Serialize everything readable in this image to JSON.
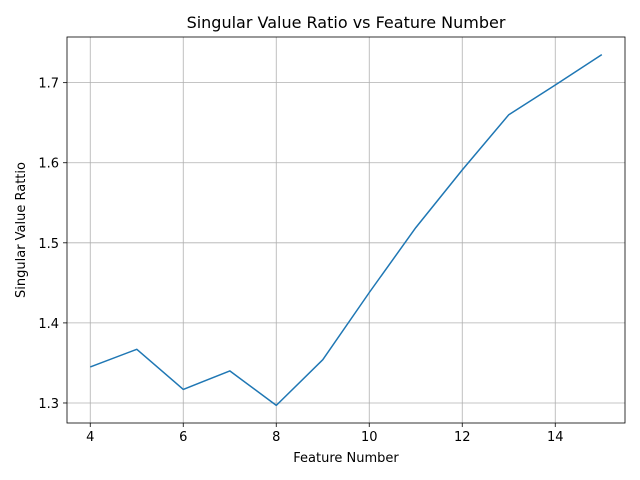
{
  "chart_data": {
    "type": "line",
    "title": "Singular Value Ratio vs Feature Number",
    "xlabel": "Feature Number",
    "ylabel": "Singular Value Rattio",
    "xlim": [
      3.5,
      15.5
    ],
    "ylim": [
      1.275,
      1.757
    ],
    "xticks": [
      4,
      6,
      8,
      10,
      12,
      14
    ],
    "yticks": [
      1.3,
      1.4,
      1.5,
      1.6,
      1.7
    ],
    "xtick_labels": [
      "4",
      "6",
      "8",
      "10",
      "12",
      "14"
    ],
    "ytick_labels": [
      "1.3",
      "1.4",
      "1.5",
      "1.6",
      "1.7"
    ],
    "grid": true,
    "series": [
      {
        "color": "#1f77b4",
        "x": [
          4,
          5,
          6,
          7,
          8,
          9,
          10,
          11,
          12,
          13,
          14,
          15
        ],
        "y": [
          1.345,
          1.367,
          1.317,
          1.34,
          1.297,
          1.354,
          1.438,
          1.519,
          1.591,
          1.66,
          1.697,
          1.735
        ]
      }
    ]
  }
}
